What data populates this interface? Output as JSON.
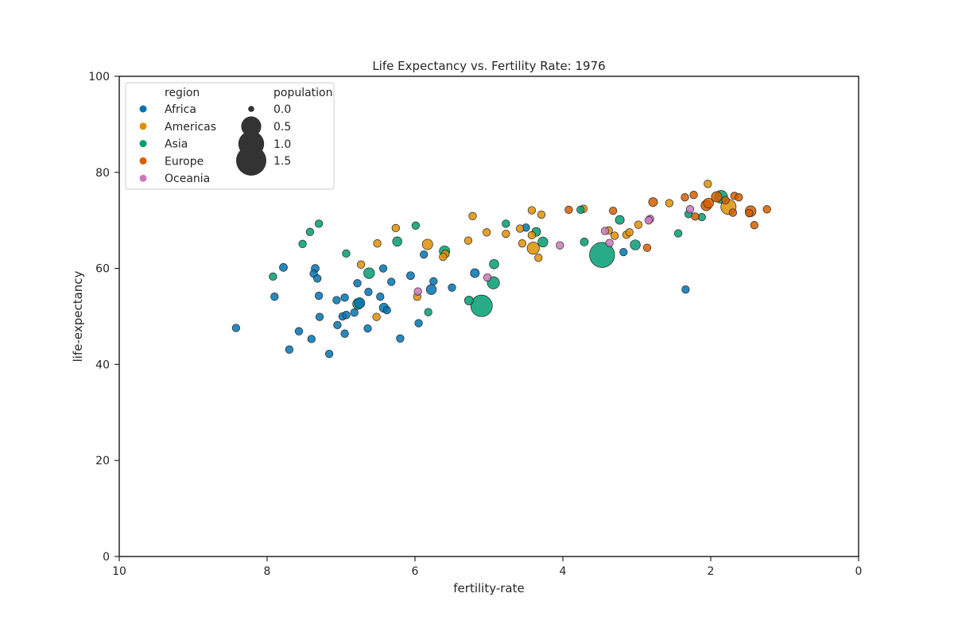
{
  "chart_data": {
    "type": "scatter",
    "title": "Life Expectancy vs. Fertility Rate: 1976",
    "xlabel": "fertility-rate",
    "ylabel": "life-expectancy",
    "xlim": [
      10,
      0
    ],
    "ylim": [
      0,
      100
    ],
    "x_reversed": true,
    "xticks": [
      10,
      8,
      6,
      4,
      2,
      0
    ],
    "yticks": [
      0,
      20,
      40,
      60,
      80,
      100
    ],
    "grid": false,
    "legend_placement": "top-left",
    "hue_title": "region",
    "size_title": "population",
    "size_legend": [
      "0.0",
      "0.5",
      "1.0",
      "1.5"
    ],
    "size_legend_values": [
      0.0,
      0.5,
      1.0,
      1.5
    ],
    "series": [
      {
        "name": "Africa",
        "color": "#0173b2",
        "points": [
          [
            8.42,
            47.6,
            0.006
          ],
          [
            7.9,
            54.1,
            0.006
          ],
          [
            7.78,
            60.2,
            0.01
          ],
          [
            7.7,
            43.1,
            0.006
          ],
          [
            7.57,
            46.9,
            0.006
          ],
          [
            7.4,
            45.3,
            0.006
          ],
          [
            7.37,
            58.9,
            0.007
          ],
          [
            7.35,
            60.0,
            0.01
          ],
          [
            7.32,
            57.9,
            0.006
          ],
          [
            7.3,
            54.3,
            0.006
          ],
          [
            7.29,
            49.9,
            0.006
          ],
          [
            7.16,
            42.2,
            0.006
          ],
          [
            7.06,
            53.4,
            0.007
          ],
          [
            7.05,
            48.2,
            0.006
          ],
          [
            6.98,
            50.0,
            0.006
          ],
          [
            6.95,
            46.4,
            0.006
          ],
          [
            6.93,
            50.3,
            0.006
          ],
          [
            6.95,
            53.9,
            0.007
          ],
          [
            6.82,
            50.8,
            0.006
          ],
          [
            6.78,
            56.9,
            0.006
          ],
          [
            6.75,
            52.8,
            0.05
          ],
          [
            6.64,
            47.5,
            0.006
          ],
          [
            6.63,
            55.1,
            0.006
          ],
          [
            6.47,
            54.1,
            0.006
          ],
          [
            6.43,
            60.0,
            0.006
          ],
          [
            6.42,
            51.8,
            0.025
          ],
          [
            6.38,
            51.3,
            0.006
          ],
          [
            6.32,
            57.2,
            0.006
          ],
          [
            6.2,
            45.4,
            0.006
          ],
          [
            6.06,
            58.5,
            0.01
          ],
          [
            5.95,
            48.6,
            0.006
          ],
          [
            5.88,
            62.9,
            0.006
          ],
          [
            5.78,
            55.6,
            0.04
          ],
          [
            5.75,
            57.3,
            0.006
          ],
          [
            5.5,
            56.0,
            0.006
          ],
          [
            5.19,
            59.0,
            0.02
          ],
          [
            4.5,
            68.5,
            0.006
          ],
          [
            3.18,
            63.4,
            0.006
          ],
          [
            2.34,
            55.6,
            0.006
          ]
        ]
      },
      {
        "name": "Americas",
        "color": "#de8f05",
        "points": [
          [
            6.73,
            60.8,
            0.006
          ],
          [
            6.52,
            49.9,
            0.006
          ],
          [
            6.51,
            65.2,
            0.006
          ],
          [
            6.26,
            68.4,
            0.006
          ],
          [
            5.97,
            54.1,
            0.006
          ],
          [
            5.83,
            65.0,
            0.05
          ],
          [
            5.62,
            62.4,
            0.006
          ],
          [
            5.59,
            63.0,
            0.01
          ],
          [
            5.28,
            65.8,
            0.006
          ],
          [
            5.22,
            70.9,
            0.006
          ],
          [
            5.03,
            67.5,
            0.006
          ],
          [
            4.77,
            67.2,
            0.006
          ],
          [
            4.58,
            68.3,
            0.006
          ],
          [
            4.55,
            65.2,
            0.006
          ],
          [
            4.42,
            72.1,
            0.006
          ],
          [
            4.4,
            64.2,
            0.1
          ],
          [
            4.33,
            62.2,
            0.006
          ],
          [
            4.29,
            71.2,
            0.006
          ],
          [
            4.42,
            66.9,
            0.006
          ],
          [
            3.72,
            72.4,
            0.006
          ],
          [
            3.38,
            67.9,
            0.006
          ],
          [
            3.3,
            66.8,
            0.006
          ],
          [
            3.14,
            67.0,
            0.006
          ],
          [
            3.1,
            67.5,
            0.006
          ],
          [
            2.98,
            69.1,
            0.006
          ],
          [
            2.56,
            73.6,
            0.006
          ],
          [
            2.04,
            77.6,
            0.006
          ],
          [
            1.76,
            72.8,
            0.22
          ]
        ]
      },
      {
        "name": "Asia",
        "color": "#029e73",
        "points": [
          [
            7.92,
            58.3,
            0.006
          ],
          [
            7.52,
            65.1,
            0.006
          ],
          [
            7.42,
            67.6,
            0.006
          ],
          [
            7.3,
            69.3,
            0.006
          ],
          [
            6.93,
            63.1,
            0.006
          ],
          [
            6.77,
            52.6,
            0.06
          ],
          [
            6.62,
            59.0,
            0.06
          ],
          [
            6.24,
            65.6,
            0.03
          ],
          [
            5.99,
            68.9,
            0.006
          ],
          [
            5.82,
            50.9,
            0.006
          ],
          [
            5.6,
            63.6,
            0.05
          ],
          [
            5.27,
            53.3,
            0.02
          ],
          [
            5.1,
            52.2,
            0.62
          ],
          [
            4.94,
            57.0,
            0.1
          ],
          [
            4.93,
            60.9,
            0.03
          ],
          [
            4.77,
            69.3,
            0.006
          ],
          [
            4.36,
            67.6,
            0.02
          ],
          [
            4.27,
            65.5,
            0.04
          ],
          [
            3.76,
            72.2,
            0.006
          ],
          [
            3.71,
            65.5,
            0.01
          ],
          [
            3.47,
            62.8,
            0.93
          ],
          [
            3.23,
            70.1,
            0.02
          ],
          [
            3.02,
            64.9,
            0.04
          ],
          [
            2.44,
            67.3,
            0.006
          ],
          [
            2.3,
            71.3,
            0.006
          ],
          [
            2.12,
            70.7,
            0.006
          ],
          [
            1.86,
            74.9,
            0.12
          ]
        ]
      },
      {
        "name": "Europe",
        "color": "#d55e00",
        "points": [
          [
            3.92,
            72.2,
            0.006
          ],
          [
            3.32,
            72.0,
            0.006
          ],
          [
            2.86,
            64.3,
            0.006
          ],
          [
            2.78,
            73.8,
            0.02
          ],
          [
            2.35,
            74.8,
            0.006
          ],
          [
            2.23,
            75.3,
            0.006
          ],
          [
            2.21,
            70.8,
            0.006
          ],
          [
            2.06,
            73.1,
            0.05
          ],
          [
            2.03,
            73.6,
            0.04
          ],
          [
            1.92,
            74.9,
            0.05
          ],
          [
            1.8,
            74.2,
            0.006
          ],
          [
            1.7,
            71.6,
            0.006
          ],
          [
            1.68,
            75.1,
            0.006
          ],
          [
            1.62,
            74.8,
            0.006
          ],
          [
            1.48,
            71.5,
            0.006
          ],
          [
            1.46,
            71.9,
            0.06
          ],
          [
            1.41,
            69.0,
            0.006
          ],
          [
            1.24,
            72.3,
            0.006
          ]
        ]
      },
      {
        "name": "Oceania",
        "color": "#cc78bc",
        "points": [
          [
            5.96,
            55.2,
            0.006
          ],
          [
            5.02,
            58.1,
            0.006
          ],
          [
            4.04,
            64.8,
            0.006
          ],
          [
            3.43,
            67.8,
            0.006
          ],
          [
            3.37,
            65.3,
            0.006
          ],
          [
            2.82,
            70.3,
            0.006
          ],
          [
            2.28,
            72.3,
            0.006
          ],
          [
            2.84,
            70.0,
            0.006
          ]
        ]
      }
    ]
  }
}
